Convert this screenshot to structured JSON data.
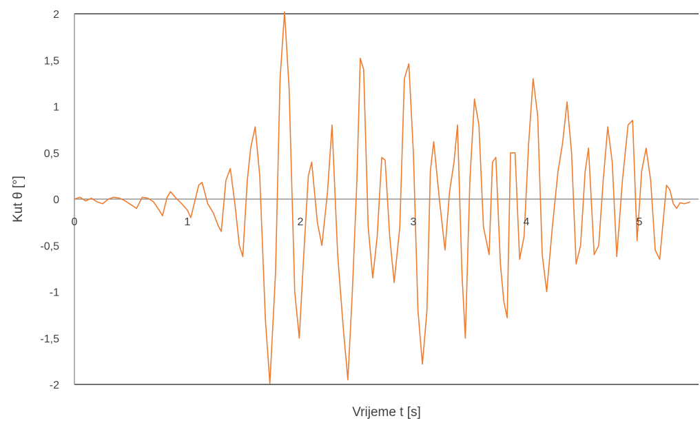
{
  "chart_data": {
    "type": "line",
    "title": "",
    "xlabel": "Vrijeme t [s]",
    "ylabel": "Kut θ [°]",
    "xlim": [
      0,
      5.45
    ],
    "ylim": [
      -2,
      2
    ],
    "x_ticks": [
      "0",
      "1",
      "2",
      "3",
      "4",
      "5"
    ],
    "x_tick_values": [
      0,
      1,
      2,
      3,
      4,
      5
    ],
    "y_ticks": [
      "2",
      "1,5",
      "1",
      "0,5",
      "0",
      "-0,5",
      "-1",
      "-1,5",
      "-2"
    ],
    "y_tick_values": [
      2,
      1.5,
      1,
      0.5,
      0,
      -0.5,
      -1,
      -1.5,
      -2
    ],
    "grid": false,
    "legend": "none",
    "series": [
      {
        "color": "#ED7D31",
        "points": [
          [
            0.0,
            0.0
          ],
          [
            0.05,
            0.02
          ],
          [
            0.1,
            -0.02
          ],
          [
            0.15,
            0.01
          ],
          [
            0.2,
            -0.03
          ],
          [
            0.25,
            -0.05
          ],
          [
            0.3,
            0.0
          ],
          [
            0.35,
            0.02
          ],
          [
            0.4,
            0.01
          ],
          [
            0.45,
            -0.02
          ],
          [
            0.5,
            -0.06
          ],
          [
            0.55,
            -0.1
          ],
          [
            0.6,
            0.02
          ],
          [
            0.65,
            0.01
          ],
          [
            0.7,
            -0.03
          ],
          [
            0.75,
            -0.12
          ],
          [
            0.78,
            -0.18
          ],
          [
            0.82,
            0.02
          ],
          [
            0.85,
            0.08
          ],
          [
            0.9,
            0.01
          ],
          [
            0.95,
            -0.05
          ],
          [
            1.0,
            -0.12
          ],
          [
            1.03,
            -0.2
          ],
          [
            1.07,
            0.0
          ],
          [
            1.1,
            0.15
          ],
          [
            1.13,
            0.18
          ],
          [
            1.18,
            -0.05
          ],
          [
            1.23,
            -0.15
          ],
          [
            1.27,
            -0.28
          ],
          [
            1.3,
            -0.35
          ],
          [
            1.34,
            0.2
          ],
          [
            1.38,
            0.33
          ],
          [
            1.42,
            -0.05
          ],
          [
            1.46,
            -0.5
          ],
          [
            1.49,
            -0.62
          ],
          [
            1.53,
            0.2
          ],
          [
            1.56,
            0.55
          ],
          [
            1.6,
            0.78
          ],
          [
            1.64,
            0.25
          ],
          [
            1.69,
            -1.3
          ],
          [
            1.73,
            -1.99
          ],
          [
            1.78,
            -0.8
          ],
          [
            1.82,
            1.3
          ],
          [
            1.86,
            2.02
          ],
          [
            1.9,
            1.2
          ],
          [
            1.95,
            -1.0
          ],
          [
            1.99,
            -1.5
          ],
          [
            2.03,
            -0.6
          ],
          [
            2.07,
            0.25
          ],
          [
            2.1,
            0.4
          ],
          [
            2.15,
            -0.25
          ],
          [
            2.19,
            -0.5
          ],
          [
            2.24,
            0.08
          ],
          [
            2.28,
            0.8
          ],
          [
            2.33,
            -0.6
          ],
          [
            2.38,
            -1.4
          ],
          [
            2.42,
            -1.95
          ],
          [
            2.46,
            -1.0
          ],
          [
            2.5,
            0.2
          ],
          [
            2.53,
            1.52
          ],
          [
            2.56,
            1.4
          ],
          [
            2.6,
            -0.3
          ],
          [
            2.64,
            -0.85
          ],
          [
            2.68,
            -0.4
          ],
          [
            2.72,
            0.45
          ],
          [
            2.75,
            0.42
          ],
          [
            2.79,
            -0.4
          ],
          [
            2.83,
            -0.9
          ],
          [
            2.88,
            -0.3
          ],
          [
            2.92,
            1.3
          ],
          [
            2.96,
            1.46
          ],
          [
            3.0,
            0.5
          ],
          [
            3.04,
            -1.2
          ],
          [
            3.08,
            -1.78
          ],
          [
            3.12,
            -1.2
          ],
          [
            3.15,
            0.3
          ],
          [
            3.18,
            0.62
          ],
          [
            3.23,
            0.0
          ],
          [
            3.28,
            -0.55
          ],
          [
            3.32,
            0.08
          ],
          [
            3.36,
            0.4
          ],
          [
            3.39,
            0.8
          ],
          [
            3.43,
            -0.8
          ],
          [
            3.46,
            -1.5
          ],
          [
            3.5,
            0.2
          ],
          [
            3.54,
            1.08
          ],
          [
            3.58,
            0.8
          ],
          [
            3.62,
            -0.3
          ],
          [
            3.67,
            -0.6
          ],
          [
            3.7,
            0.4
          ],
          [
            3.73,
            0.45
          ],
          [
            3.77,
            -0.7
          ],
          [
            3.8,
            -1.1
          ],
          [
            3.83,
            -1.28
          ],
          [
            3.86,
            0.5
          ],
          [
            3.9,
            0.5
          ],
          [
            3.94,
            -0.65
          ],
          [
            3.98,
            -0.4
          ],
          [
            4.02,
            0.6
          ],
          [
            4.06,
            1.3
          ],
          [
            4.1,
            0.9
          ],
          [
            4.14,
            -0.6
          ],
          [
            4.18,
            -1.0
          ],
          [
            4.23,
            -0.3
          ],
          [
            4.28,
            0.3
          ],
          [
            4.32,
            0.6
          ],
          [
            4.36,
            1.05
          ],
          [
            4.4,
            0.5
          ],
          [
            4.44,
            -0.7
          ],
          [
            4.48,
            -0.5
          ],
          [
            4.52,
            0.3
          ],
          [
            4.55,
            0.55
          ],
          [
            4.6,
            -0.6
          ],
          [
            4.64,
            -0.5
          ],
          [
            4.68,
            0.2
          ],
          [
            4.72,
            0.78
          ],
          [
            4.76,
            0.4
          ],
          [
            4.8,
            -0.62
          ],
          [
            4.85,
            0.2
          ],
          [
            4.9,
            0.8
          ],
          [
            4.94,
            0.85
          ],
          [
            4.98,
            -0.45
          ],
          [
            5.02,
            0.3
          ],
          [
            5.06,
            0.55
          ],
          [
            5.1,
            0.2
          ],
          [
            5.14,
            -0.55
          ],
          [
            5.18,
            -0.65
          ],
          [
            5.21,
            -0.25
          ],
          [
            5.24,
            0.15
          ],
          [
            5.27,
            0.1
          ],
          [
            5.3,
            -0.05
          ],
          [
            5.33,
            -0.1
          ],
          [
            5.36,
            -0.04
          ],
          [
            5.4,
            -0.05
          ],
          [
            5.45,
            -0.03
          ]
        ]
      }
    ]
  }
}
